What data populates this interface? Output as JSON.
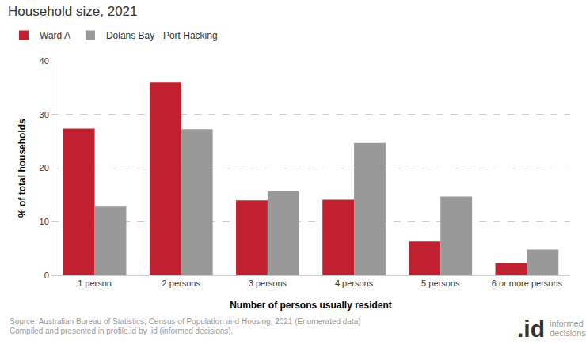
{
  "chart_data": {
    "type": "bar",
    "title": "Household size, 2021",
    "x_label": "Number of persons usually resident",
    "y_label": "% of total households",
    "categories": [
      "1 person",
      "2 persons",
      "3 persons",
      "4 persons",
      "5 persons",
      "6 or more persons"
    ],
    "series": [
      {
        "name": "Ward A",
        "color": "#c0202f",
        "values": [
          27.4,
          36.0,
          14.0,
          14.1,
          6.3,
          2.3
        ]
      },
      {
        "name": "Dolans Bay - Port Hacking",
        "color": "#999999",
        "values": [
          12.8,
          27.3,
          15.7,
          24.7,
          14.7,
          4.8
        ]
      }
    ],
    "ylim": [
      0,
      40
    ],
    "yticks": [
      0,
      10,
      20,
      30,
      40
    ],
    "grid": true,
    "legend": "top-left",
    "source": [
      "Source: Australian Bureau of Statistics, Census of Population and Housing, 2021 (Enumerated data)",
      "Compiled and presented in profile.id by .id (informed decisions)."
    ],
    "logo": ".id",
    "logo_text": [
      "informed",
      "decisions"
    ]
  }
}
